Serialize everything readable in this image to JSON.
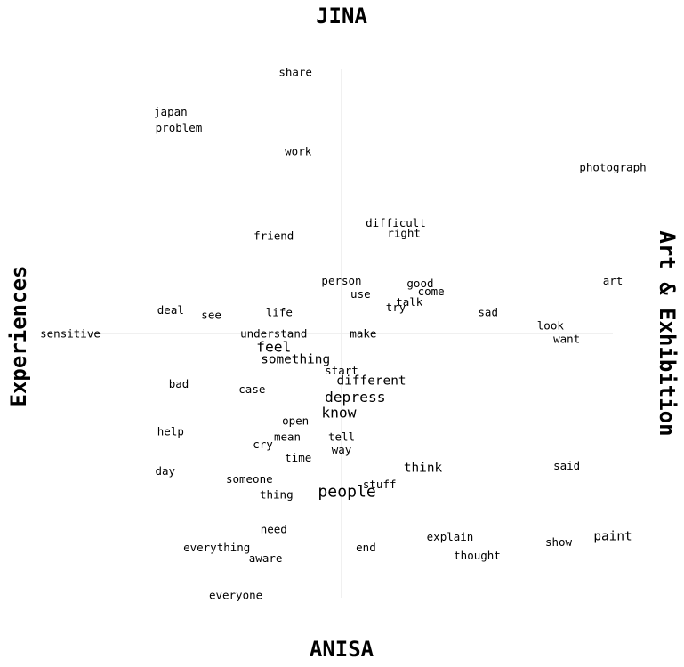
{
  "chart_data": {
    "type": "scatter",
    "title": "",
    "axis_labels": {
      "top": "JINA",
      "bottom": "ANISA",
      "left": "Experiences",
      "right": "Art & Exhibition"
    },
    "xlim": [
      -1,
      1
    ],
    "ylim": [
      -1,
      1
    ],
    "grid": false,
    "points": [
      {
        "label": "share",
        "x": -0.17,
        "y": 0.99,
        "size": 1
      },
      {
        "label": "japan",
        "x": -0.63,
        "y": 0.84,
        "size": 1
      },
      {
        "label": "problem",
        "x": -0.6,
        "y": 0.78,
        "size": 1
      },
      {
        "label": "work",
        "x": -0.16,
        "y": 0.69,
        "size": 1
      },
      {
        "label": "photograph",
        "x": 1.0,
        "y": 0.63,
        "size": 1
      },
      {
        "label": "difficult",
        "x": 0.2,
        "y": 0.42,
        "size": 1
      },
      {
        "label": "right",
        "x": 0.23,
        "y": 0.38,
        "size": 1
      },
      {
        "label": "friend",
        "x": -0.25,
        "y": 0.37,
        "size": 1
      },
      {
        "label": "person",
        "x": 0.0,
        "y": 0.2,
        "size": 1
      },
      {
        "label": "good",
        "x": 0.29,
        "y": 0.19,
        "size": 1
      },
      {
        "label": "art",
        "x": 1.0,
        "y": 0.2,
        "size": 1
      },
      {
        "label": "use",
        "x": 0.07,
        "y": 0.15,
        "size": 1
      },
      {
        "label": "come",
        "x": 0.33,
        "y": 0.16,
        "size": 1
      },
      {
        "label": "talk",
        "x": 0.25,
        "y": 0.12,
        "size": 1
      },
      {
        "label": "try",
        "x": 0.2,
        "y": 0.1,
        "size": 1
      },
      {
        "label": "deal",
        "x": -0.63,
        "y": 0.09,
        "size": 1
      },
      {
        "label": "see",
        "x": -0.48,
        "y": 0.07,
        "size": 1
      },
      {
        "label": "life",
        "x": -0.23,
        "y": 0.08,
        "size": 1
      },
      {
        "label": "sad",
        "x": 0.54,
        "y": 0.08,
        "size": 1
      },
      {
        "label": "look",
        "x": 0.77,
        "y": 0.03,
        "size": 1
      },
      {
        "label": "sensitive",
        "x": -1.0,
        "y": 0.0,
        "size": 1
      },
      {
        "label": "understand",
        "x": -0.25,
        "y": 0.0,
        "size": 1
      },
      {
        "label": "make",
        "x": 0.08,
        "y": 0.0,
        "size": 1
      },
      {
        "label": "want",
        "x": 0.83,
        "y": -0.02,
        "size": 1
      },
      {
        "label": "feel",
        "x": -0.25,
        "y": -0.05,
        "size": 2
      },
      {
        "label": "something",
        "x": -0.17,
        "y": -0.1,
        "size": 1.5
      },
      {
        "label": "start",
        "x": 0.0,
        "y": -0.14,
        "size": 1
      },
      {
        "label": "different",
        "x": 0.11,
        "y": -0.18,
        "size": 1.5
      },
      {
        "label": "bad",
        "x": -0.6,
        "y": -0.19,
        "size": 1
      },
      {
        "label": "case",
        "x": -0.33,
        "y": -0.21,
        "size": 1
      },
      {
        "label": "depress",
        "x": 0.05,
        "y": -0.24,
        "size": 2
      },
      {
        "label": "know",
        "x": -0.01,
        "y": -0.3,
        "size": 2
      },
      {
        "label": "open",
        "x": -0.17,
        "y": -0.33,
        "size": 1
      },
      {
        "label": "help",
        "x": -0.63,
        "y": -0.37,
        "size": 1
      },
      {
        "label": "mean",
        "x": -0.2,
        "y": -0.39,
        "size": 1
      },
      {
        "label": "tell",
        "x": 0.0,
        "y": -0.39,
        "size": 1
      },
      {
        "label": "cry",
        "x": -0.29,
        "y": -0.42,
        "size": 1
      },
      {
        "label": "way",
        "x": 0.0,
        "y": -0.44,
        "size": 1
      },
      {
        "label": "time",
        "x": -0.16,
        "y": -0.47,
        "size": 1
      },
      {
        "label": "think",
        "x": 0.3,
        "y": -0.51,
        "size": 1.5
      },
      {
        "label": "said",
        "x": 0.83,
        "y": -0.5,
        "size": 1
      },
      {
        "label": "day",
        "x": -0.65,
        "y": -0.52,
        "size": 1
      },
      {
        "label": "someone",
        "x": -0.34,
        "y": -0.55,
        "size": 1
      },
      {
        "label": "stuff",
        "x": 0.14,
        "y": -0.57,
        "size": 1
      },
      {
        "label": "thing",
        "x": -0.24,
        "y": -0.61,
        "size": 1
      },
      {
        "label": "people",
        "x": 0.02,
        "y": -0.6,
        "size": 2.5
      },
      {
        "label": "need",
        "x": -0.25,
        "y": -0.74,
        "size": 1
      },
      {
        "label": "explain",
        "x": 0.4,
        "y": -0.77,
        "size": 1
      },
      {
        "label": "paint",
        "x": 1.0,
        "y": -0.77,
        "size": 1.5
      },
      {
        "label": "everything",
        "x": -0.46,
        "y": -0.81,
        "size": 1
      },
      {
        "label": "end",
        "x": 0.09,
        "y": -0.81,
        "size": 1
      },
      {
        "label": "show",
        "x": 0.8,
        "y": -0.79,
        "size": 1
      },
      {
        "label": "aware",
        "x": -0.28,
        "y": -0.85,
        "size": 1
      },
      {
        "label": "thought",
        "x": 0.5,
        "y": -0.84,
        "size": 1
      },
      {
        "label": "everyone",
        "x": -0.39,
        "y": -0.99,
        "size": 1
      }
    ]
  }
}
